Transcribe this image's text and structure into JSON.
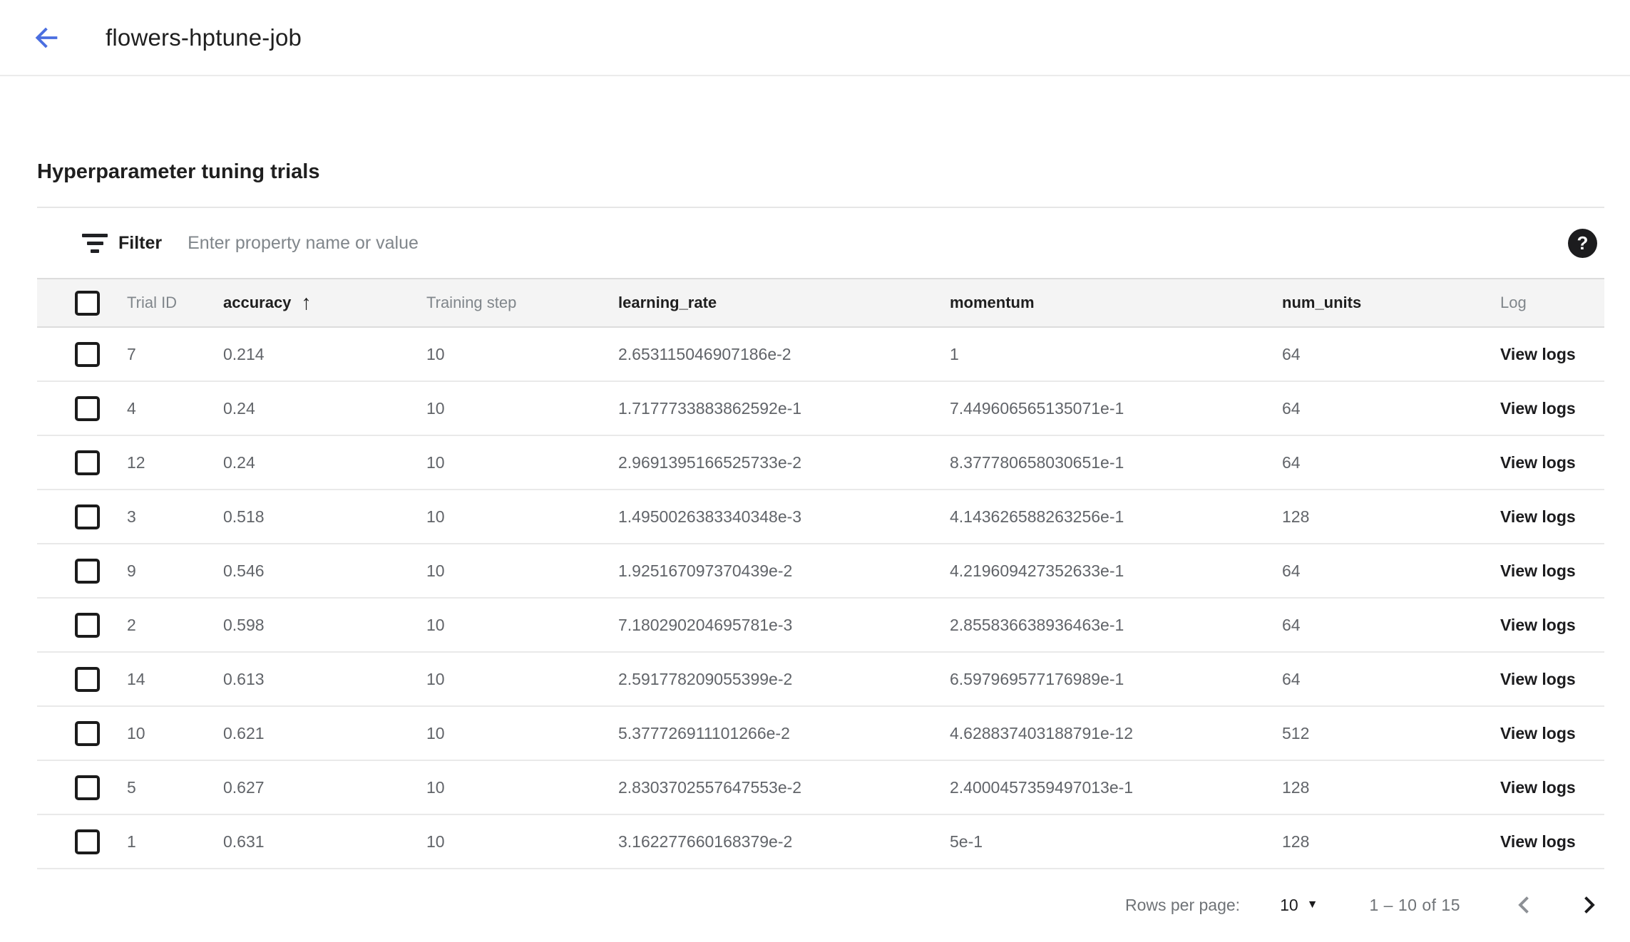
{
  "header": {
    "title": "flowers-hptune-job"
  },
  "section": {
    "heading": "Hyperparameter tuning trials"
  },
  "filter": {
    "label": "Filter",
    "placeholder": "Enter property name or value",
    "help_glyph": "?"
  },
  "icons": {
    "back": "arrow-back",
    "filter": "filter-list",
    "help": "help-circle",
    "sort_asc": "↑",
    "dropdown_caret": "▼",
    "prev": "chevron-left",
    "next": "chevron-right"
  },
  "colors": {
    "accent_blue": "#4a6ee0",
    "header_band": "#f4f4f4",
    "row_border": "#e9e9e9",
    "text_dark": "#1f1f1f",
    "text_gray": "#616469",
    "label_gray": "#80868b"
  },
  "table": {
    "columns": [
      {
        "key": "select",
        "label": "",
        "type": "checkbox"
      },
      {
        "key": "trial_id",
        "label": "Trial ID",
        "emphasis": false
      },
      {
        "key": "accuracy",
        "label": "accuracy",
        "emphasis": true,
        "sorted": "asc"
      },
      {
        "key": "training_step",
        "label": "Training step",
        "emphasis": false
      },
      {
        "key": "learning_rate",
        "label": "learning_rate",
        "emphasis": true
      },
      {
        "key": "momentum",
        "label": "momentum",
        "emphasis": true
      },
      {
        "key": "num_units",
        "label": "num_units",
        "emphasis": true
      },
      {
        "key": "log",
        "label": "Log",
        "emphasis": false
      }
    ],
    "rows": [
      {
        "trial_id": "7",
        "accuracy": "0.214",
        "training_step": "10",
        "learning_rate": "2.653115046907186e-2",
        "momentum": "1",
        "num_units": "64",
        "log": "View logs"
      },
      {
        "trial_id": "4",
        "accuracy": "0.24",
        "training_step": "10",
        "learning_rate": "1.7177733883862592e-1",
        "momentum": "7.449606565135071e-1",
        "num_units": "64",
        "log": "View logs"
      },
      {
        "trial_id": "12",
        "accuracy": "0.24",
        "training_step": "10",
        "learning_rate": "2.9691395166525733e-2",
        "momentum": "8.377780658030651e-1",
        "num_units": "64",
        "log": "View logs"
      },
      {
        "trial_id": "3",
        "accuracy": "0.518",
        "training_step": "10",
        "learning_rate": "1.4950026383340348e-3",
        "momentum": "4.143626588263256e-1",
        "num_units": "128",
        "log": "View logs"
      },
      {
        "trial_id": "9",
        "accuracy": "0.546",
        "training_step": "10",
        "learning_rate": "1.925167097370439e-2",
        "momentum": "4.219609427352633e-1",
        "num_units": "64",
        "log": "View logs"
      },
      {
        "trial_id": "2",
        "accuracy": "0.598",
        "training_step": "10",
        "learning_rate": "7.180290204695781e-3",
        "momentum": "2.855836638936463e-1",
        "num_units": "64",
        "log": "View logs"
      },
      {
        "trial_id": "14",
        "accuracy": "0.613",
        "training_step": "10",
        "learning_rate": "2.591778209055399e-2",
        "momentum": "6.597969577176989e-1",
        "num_units": "64",
        "log": "View logs"
      },
      {
        "trial_id": "10",
        "accuracy": "0.621",
        "training_step": "10",
        "learning_rate": "5.377726911101266e-2",
        "momentum": "4.628837403188791e-12",
        "num_units": "512",
        "log": "View logs"
      },
      {
        "trial_id": "5",
        "accuracy": "0.627",
        "training_step": "10",
        "learning_rate": "2.8303702557647553e-2",
        "momentum": "2.4000457359497013e-1",
        "num_units": "128",
        "log": "View logs"
      },
      {
        "trial_id": "1",
        "accuracy": "0.631",
        "training_step": "10",
        "learning_rate": "3.162277660168379e-2",
        "momentum": "5e-1",
        "num_units": "128",
        "log": "View logs"
      }
    ]
  },
  "pagination": {
    "rows_per_page_label": "Rows per page:",
    "rows_per_page_value": "10",
    "range_label": "1 – 10 of 15"
  }
}
